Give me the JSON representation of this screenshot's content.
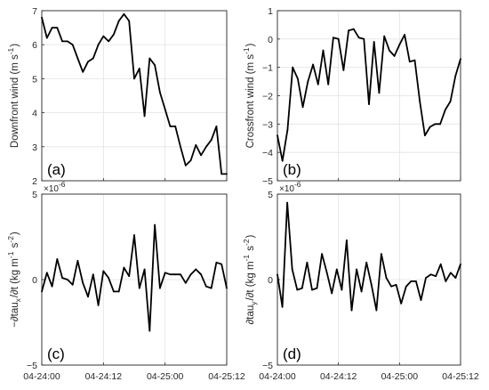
{
  "chart_data": [
    {
      "type": "line",
      "panel_label": "(a)",
      "ylabel": "Downfront wind (m s^{-1})",
      "xlim": [
        0,
        36
      ],
      "ylim": [
        2,
        7
      ],
      "yticks": [
        2,
        3,
        4,
        5,
        6,
        7
      ],
      "xtick_labels": [],
      "grid": true,
      "series": [
        {
          "values": [
            6.8,
            6.2,
            6.5,
            6.5,
            6.1,
            6.1,
            6.0,
            5.6,
            5.2,
            5.5,
            5.6,
            6.0,
            6.25,
            6.1,
            6.3,
            6.7,
            6.9,
            6.7,
            5.0,
            5.3,
            3.9,
            5.6,
            5.4,
            4.6,
            4.1,
            3.6,
            3.6,
            3.0,
            2.45,
            2.6,
            3.05,
            2.75,
            3.0,
            3.2,
            3.6,
            2.2,
            2.2
          ]
        }
      ]
    },
    {
      "type": "line",
      "panel_label": "(b)",
      "ylabel": "Crossfront wind (m s^{-1})",
      "xlim": [
        0,
        36
      ],
      "ylim": [
        -5,
        1
      ],
      "yticks": [
        -5,
        -4,
        -3,
        -2,
        -1,
        0,
        1
      ],
      "xtick_labels": [],
      "grid": true,
      "series": [
        {
          "values": [
            -3.4,
            -4.3,
            -3.2,
            -1.0,
            -1.4,
            -2.4,
            -1.5,
            -0.9,
            -1.6,
            -0.4,
            -1.6,
            0.05,
            0.0,
            -1.1,
            0.3,
            0.35,
            0.05,
            0.0,
            -2.3,
            -0.1,
            -1.9,
            0.1,
            -0.4,
            -0.6,
            -0.2,
            0.15,
            -0.8,
            -0.75,
            -2.2,
            -3.4,
            -3.1,
            -3.0,
            -3.0,
            -2.5,
            -2.2,
            -1.3,
            -0.7
          ]
        }
      ]
    },
    {
      "type": "line",
      "panel_label": "(c)",
      "ylabel": "−∂tau_x/∂t (kg m^{-1} s^{-2})",
      "exponent_label": "×10^{-6}",
      "xlim": [
        0,
        36
      ],
      "ylim": [
        -5,
        5
      ],
      "yticks": [
        -5,
        0,
        5
      ],
      "xtick_labels": [
        "04-24:00",
        "04-24:12",
        "04-25:00",
        "04-25:12"
      ],
      "xtick_positions": [
        0,
        12,
        24,
        36
      ],
      "grid": true,
      "series": [
        {
          "values": [
            -0.7,
            0.4,
            -0.4,
            1.2,
            0.1,
            0.0,
            -0.3,
            1.1,
            -0.2,
            -1.0,
            0.3,
            -1.5,
            0.5,
            0.1,
            -0.7,
            -0.7,
            0.7,
            0.2,
            2.6,
            -0.5,
            0.6,
            -3.0,
            3.2,
            -0.5,
            0.4,
            0.3,
            0.3,
            0.3,
            -0.2,
            0.3,
            0.6,
            0.3,
            -0.4,
            -0.5,
            1.0,
            0.9,
            -0.5
          ]
        }
      ]
    },
    {
      "type": "line",
      "panel_label": "(d)",
      "ylabel": "∂tau_y/∂t (kg m^{-1} s^{-2})",
      "exponent_label": "×10^{-6}",
      "xlim": [
        0,
        36
      ],
      "ylim": [
        -5,
        5
      ],
      "yticks": [
        -5,
        0,
        5
      ],
      "xtick_labels": [
        "04-24:00",
        "04-24:12",
        "04-25:00",
        "04-25:12"
      ],
      "xtick_positions": [
        0,
        12,
        24,
        36
      ],
      "grid": true,
      "series": [
        {
          "values": [
            0.3,
            -1.6,
            4.5,
            0.6,
            -0.6,
            -0.5,
            1.0,
            -0.6,
            -0.5,
            1.5,
            0.4,
            -0.8,
            0.6,
            -0.6,
            2.3,
            -1.8,
            0.6,
            -0.7,
            1.0,
            -0.3,
            -1.8,
            1.5,
            0.1,
            -0.4,
            -0.3,
            -1.4,
            -0.4,
            -0.1,
            -0.1,
            -1.2,
            0.1,
            0.3,
            0.2,
            0.9,
            -0.1,
            0.4,
            0.1,
            0.9
          ]
        }
      ]
    }
  ]
}
